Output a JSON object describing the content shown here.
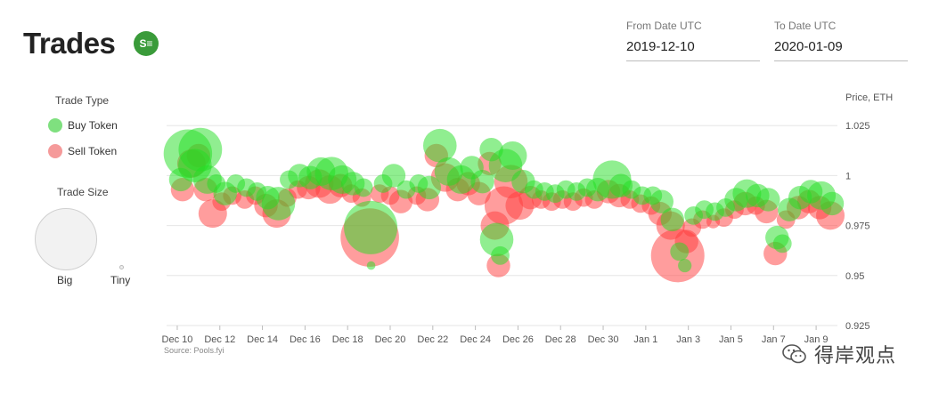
{
  "header": {
    "title": "Trades",
    "logo_text": "S≡"
  },
  "filters": {
    "from_label": "From Date UTC",
    "from_value": "2019-12-10",
    "to_label": "To Date UTC",
    "to_value": "2020-01-09"
  },
  "legend": {
    "type_title": "Trade Type",
    "buy_label": "Buy Token",
    "sell_label": "Sell Token",
    "size_title": "Trade Size",
    "big_label": "Big",
    "tiny_label": "Tiny"
  },
  "colors": {
    "buy": "#22dd22",
    "sell": "#ff3b3b",
    "buy_legend": "#7fe07f",
    "sell_legend": "#f59a9a"
  },
  "source": "Source: Pools.fyi",
  "watermark": "得岸观点",
  "chart_data": {
    "type": "scatter",
    "ylabel": "Price, ETH",
    "ylim": [
      0.925,
      1.03
    ],
    "xlim": [
      "2019-12-09T12:00",
      "2020-01-10T00:00"
    ],
    "y_ticks": [
      1.025,
      1,
      0.975,
      0.95,
      0.925
    ],
    "y_tick_labels": [
      "1.025",
      "1",
      "0.975",
      "0.95",
      "0.925"
    ],
    "x_ticks": [
      "2019-12-10",
      "2019-12-12",
      "2019-12-14",
      "2019-12-16",
      "2019-12-18",
      "2019-12-20",
      "2019-12-22",
      "2019-12-24",
      "2019-12-26",
      "2019-12-28",
      "2019-12-30",
      "2020-01-01",
      "2020-01-03",
      "2020-01-05",
      "2020-01-07",
      "2020-01-09"
    ],
    "x_tick_labels": [
      "Dec 10",
      "Dec 12",
      "Dec 14",
      "Dec 16",
      "Dec 18",
      "Dec 20",
      "Dec 22",
      "Dec 24",
      "Dec 26",
      "Dec 28",
      "Dec 30",
      "Jan 1",
      "Jan 3",
      "Jan 5",
      "Jan 7",
      "Jan 9"
    ],
    "grid": true,
    "legend_position": "left",
    "series": [
      {
        "name": "Buy Token",
        "points": [
          {
            "x": "2019-12-10T04:00",
            "y": 0.998,
            "size": 4
          },
          {
            "x": "2019-12-10T12:00",
            "y": 1.011,
            "size": 9
          },
          {
            "x": "2019-12-10T20:00",
            "y": 1.005,
            "size": 6
          },
          {
            "x": "2019-12-11T02:00",
            "y": 1.013,
            "size": 8
          },
          {
            "x": "2019-12-11T10:00",
            "y": 0.998,
            "size": 5
          },
          {
            "x": "2019-12-11T20:00",
            "y": 0.996,
            "size": 3
          },
          {
            "x": "2019-12-12T06:00",
            "y": 0.991,
            "size": 4
          },
          {
            "x": "2019-12-12T18:00",
            "y": 0.996,
            "size": 3
          },
          {
            "x": "2019-12-13T06:00",
            "y": 0.994,
            "size": 3
          },
          {
            "x": "2019-12-13T18:00",
            "y": 0.992,
            "size": 3
          },
          {
            "x": "2019-12-14T06:00",
            "y": 0.989,
            "size": 4
          },
          {
            "x": "2019-12-14T18:00",
            "y": 0.986,
            "size": 6
          },
          {
            "x": "2019-12-15T06:00",
            "y": 0.998,
            "size": 3
          },
          {
            "x": "2019-12-15T18:00",
            "y": 1.0,
            "size": 4
          },
          {
            "x": "2019-12-16T06:00",
            "y": 0.999,
            "size": 4
          },
          {
            "x": "2019-12-16T18:00",
            "y": 1.002,
            "size": 5
          },
          {
            "x": "2019-12-17T06:00",
            "y": 1.001,
            "size": 6
          },
          {
            "x": "2019-12-17T18:00",
            "y": 0.998,
            "size": 5
          },
          {
            "x": "2019-12-18T06:00",
            "y": 0.996,
            "size": 4
          },
          {
            "x": "2019-12-18T18:00",
            "y": 0.994,
            "size": 3
          },
          {
            "x": "2019-12-19T02:00",
            "y": 0.974,
            "size": 10
          },
          {
            "x": "2019-12-19T02:30",
            "y": 0.955,
            "size": 1
          },
          {
            "x": "2019-12-19T16:00",
            "y": 0.996,
            "size": 3
          },
          {
            "x": "2019-12-20T04:00",
            "y": 1.0,
            "size": 4
          },
          {
            "x": "2019-12-20T18:00",
            "y": 0.993,
            "size": 3
          },
          {
            "x": "2019-12-21T08:00",
            "y": 0.996,
            "size": 3
          },
          {
            "x": "2019-12-21T20:00",
            "y": 0.994,
            "size": 4
          },
          {
            "x": "2019-12-22T08:00",
            "y": 1.015,
            "size": 6
          },
          {
            "x": "2019-12-22T18:00",
            "y": 1.002,
            "size": 5
          },
          {
            "x": "2019-12-23T08:00",
            "y": 0.998,
            "size": 5
          },
          {
            "x": "2019-12-23T20:00",
            "y": 1.004,
            "size": 4
          },
          {
            "x": "2019-12-24T08:00",
            "y": 0.997,
            "size": 4
          },
          {
            "x": "2019-12-24T18:00",
            "y": 1.013,
            "size": 4
          },
          {
            "x": "2019-12-25T00:00",
            "y": 0.968,
            "size": 6
          },
          {
            "x": "2019-12-25T04:00",
            "y": 0.96,
            "size": 3
          },
          {
            "x": "2019-12-25T10:00",
            "y": 1.005,
            "size": 6
          },
          {
            "x": "2019-12-25T18:00",
            "y": 1.01,
            "size": 5
          },
          {
            "x": "2019-12-26T06:00",
            "y": 0.997,
            "size": 4
          },
          {
            "x": "2019-12-26T18:00",
            "y": 0.993,
            "size": 3
          },
          {
            "x": "2019-12-27T06:00",
            "y": 0.992,
            "size": 3
          },
          {
            "x": "2019-12-27T18:00",
            "y": 0.991,
            "size": 3
          },
          {
            "x": "2019-12-28T06:00",
            "y": 0.993,
            "size": 3
          },
          {
            "x": "2019-12-28T18:00",
            "y": 0.992,
            "size": 3
          },
          {
            "x": "2019-12-29T06:00",
            "y": 0.994,
            "size": 3
          },
          {
            "x": "2019-12-29T18:00",
            "y": 0.993,
            "size": 4
          },
          {
            "x": "2019-12-30T10:00",
            "y": 0.998,
            "size": 7
          },
          {
            "x": "2019-12-30T20:00",
            "y": 0.995,
            "size": 4
          },
          {
            "x": "2019-12-31T08:00",
            "y": 0.993,
            "size": 3
          },
          {
            "x": "2019-12-31T20:00",
            "y": 0.99,
            "size": 3
          },
          {
            "x": "2020-01-01T08:00",
            "y": 0.99,
            "size": 3
          },
          {
            "x": "2020-01-01T18:00",
            "y": 0.987,
            "size": 4
          },
          {
            "x": "2020-01-02T06:00",
            "y": 0.978,
            "size": 4
          },
          {
            "x": "2020-01-02T14:00",
            "y": 0.962,
            "size": 3
          },
          {
            "x": "2020-01-02T20:00",
            "y": 0.955,
            "size": 2
          },
          {
            "x": "2020-01-03T06:00",
            "y": 0.98,
            "size": 3
          },
          {
            "x": "2020-01-03T18:00",
            "y": 0.983,
            "size": 3
          },
          {
            "x": "2020-01-04T06:00",
            "y": 0.982,
            "size": 3
          },
          {
            "x": "2020-01-04T18:00",
            "y": 0.984,
            "size": 3
          },
          {
            "x": "2020-01-05T06:00",
            "y": 0.988,
            "size": 4
          },
          {
            "x": "2020-01-05T18:00",
            "y": 0.991,
            "size": 5
          },
          {
            "x": "2020-01-06T06:00",
            "y": 0.99,
            "size": 4
          },
          {
            "x": "2020-01-06T18:00",
            "y": 0.988,
            "size": 4
          },
          {
            "x": "2020-01-07T04:00",
            "y": 0.969,
            "size": 4
          },
          {
            "x": "2020-01-07T10:00",
            "y": 0.966,
            "size": 3
          },
          {
            "x": "2020-01-07T18:00",
            "y": 0.983,
            "size": 4
          },
          {
            "x": "2020-01-08T06:00",
            "y": 0.989,
            "size": 4
          },
          {
            "x": "2020-01-08T18:00",
            "y": 0.992,
            "size": 4
          },
          {
            "x": "2020-01-09T06:00",
            "y": 0.99,
            "size": 5
          },
          {
            "x": "2020-01-09T18:00",
            "y": 0.986,
            "size": 4
          }
        ]
      },
      {
        "name": "Sell Token",
        "points": [
          {
            "x": "2019-12-10T06:00",
            "y": 0.993,
            "size": 4
          },
          {
            "x": "2019-12-10T16:00",
            "y": 1.006,
            "size": 5
          },
          {
            "x": "2019-12-11T00:00",
            "y": 1.01,
            "size": 4
          },
          {
            "x": "2019-12-11T08:00",
            "y": 0.993,
            "size": 4
          },
          {
            "x": "2019-12-11T16:00",
            "y": 0.981,
            "size": 5
          },
          {
            "x": "2019-12-12T02:00",
            "y": 0.987,
            "size": 3
          },
          {
            "x": "2019-12-12T14:00",
            "y": 0.99,
            "size": 3
          },
          {
            "x": "2019-12-13T04:00",
            "y": 0.988,
            "size": 3
          },
          {
            "x": "2019-12-13T16:00",
            "y": 0.99,
            "size": 3
          },
          {
            "x": "2019-12-14T04:00",
            "y": 0.985,
            "size": 4
          },
          {
            "x": "2019-12-14T16:00",
            "y": 0.981,
            "size": 5
          },
          {
            "x": "2019-12-15T04:00",
            "y": 0.989,
            "size": 3
          },
          {
            "x": "2019-12-15T16:00",
            "y": 0.993,
            "size": 3
          },
          {
            "x": "2019-12-16T04:00",
            "y": 0.994,
            "size": 4
          },
          {
            "x": "2019-12-16T16:00",
            "y": 0.996,
            "size": 5
          },
          {
            "x": "2019-12-17T04:00",
            "y": 0.993,
            "size": 5
          },
          {
            "x": "2019-12-17T16:00",
            "y": 0.995,
            "size": 4
          },
          {
            "x": "2019-12-18T04:00",
            "y": 0.991,
            "size": 3
          },
          {
            "x": "2019-12-18T16:00",
            "y": 0.989,
            "size": 3
          },
          {
            "x": "2019-12-19T01:00",
            "y": 0.969,
            "size": 11
          },
          {
            "x": "2019-12-19T12:00",
            "y": 0.991,
            "size": 3
          },
          {
            "x": "2019-12-20T00:00",
            "y": 0.99,
            "size": 3
          },
          {
            "x": "2019-12-20T12:00",
            "y": 0.987,
            "size": 4
          },
          {
            "x": "2019-12-21T06:00",
            "y": 0.99,
            "size": 3
          },
          {
            "x": "2019-12-21T18:00",
            "y": 0.988,
            "size": 4
          },
          {
            "x": "2019-12-22T04:00",
            "y": 1.01,
            "size": 4
          },
          {
            "x": "2019-12-22T14:00",
            "y": 0.999,
            "size": 5
          },
          {
            "x": "2019-12-23T04:00",
            "y": 0.993,
            "size": 4
          },
          {
            "x": "2019-12-23T16:00",
            "y": 0.996,
            "size": 4
          },
          {
            "x": "2019-12-24T04:00",
            "y": 0.991,
            "size": 4
          },
          {
            "x": "2019-12-24T16:00",
            "y": 1.006,
            "size": 4
          },
          {
            "x": "2019-12-24T22:00",
            "y": 0.975,
            "size": 5
          },
          {
            "x": "2019-12-25T02:00",
            "y": 0.955,
            "size": 4
          },
          {
            "x": "2019-12-25T08:00",
            "y": 0.985,
            "size": 7
          },
          {
            "x": "2019-12-25T16:00",
            "y": 0.997,
            "size": 6
          },
          {
            "x": "2019-12-26T02:00",
            "y": 0.985,
            "size": 5
          },
          {
            "x": "2019-12-26T14:00",
            "y": 0.989,
            "size": 4
          },
          {
            "x": "2019-12-27T02:00",
            "y": 0.988,
            "size": 3
          },
          {
            "x": "2019-12-27T14:00",
            "y": 0.987,
            "size": 3
          },
          {
            "x": "2019-12-28T02:00",
            "y": 0.988,
            "size": 3
          },
          {
            "x": "2019-12-28T14:00",
            "y": 0.987,
            "size": 3
          },
          {
            "x": "2019-12-29T02:00",
            "y": 0.989,
            "size": 3
          },
          {
            "x": "2019-12-29T14:00",
            "y": 0.988,
            "size": 3
          },
          {
            "x": "2019-12-30T06:00",
            "y": 0.992,
            "size": 4
          },
          {
            "x": "2019-12-30T18:00",
            "y": 0.99,
            "size": 4
          },
          {
            "x": "2019-12-31T06:00",
            "y": 0.988,
            "size": 3
          },
          {
            "x": "2019-12-31T18:00",
            "y": 0.986,
            "size": 3
          },
          {
            "x": "2020-01-01T06:00",
            "y": 0.985,
            "size": 3
          },
          {
            "x": "2020-01-01T16:00",
            "y": 0.981,
            "size": 4
          },
          {
            "x": "2020-01-02T04:00",
            "y": 0.975,
            "size": 5
          },
          {
            "x": "2020-01-02T12:00",
            "y": 0.96,
            "size": 10
          },
          {
            "x": "2020-01-02T22:00",
            "y": 0.967,
            "size": 4
          },
          {
            "x": "2020-01-03T04:00",
            "y": 0.974,
            "size": 3
          },
          {
            "x": "2020-01-03T16:00",
            "y": 0.978,
            "size": 3
          },
          {
            "x": "2020-01-04T04:00",
            "y": 0.977,
            "size": 2
          },
          {
            "x": "2020-01-04T16:00",
            "y": 0.979,
            "size": 3
          },
          {
            "x": "2020-01-05T04:00",
            "y": 0.983,
            "size": 3
          },
          {
            "x": "2020-01-05T16:00",
            "y": 0.986,
            "size": 4
          },
          {
            "x": "2020-01-06T04:00",
            "y": 0.985,
            "size": 3
          },
          {
            "x": "2020-01-06T16:00",
            "y": 0.982,
            "size": 4
          },
          {
            "x": "2020-01-07T02:00",
            "y": 0.961,
            "size": 4
          },
          {
            "x": "2020-01-07T14:00",
            "y": 0.978,
            "size": 3
          },
          {
            "x": "2020-01-08T04:00",
            "y": 0.984,
            "size": 4
          },
          {
            "x": "2020-01-08T16:00",
            "y": 0.987,
            "size": 4
          },
          {
            "x": "2020-01-09T04:00",
            "y": 0.984,
            "size": 4
          },
          {
            "x": "2020-01-09T16:00",
            "y": 0.98,
            "size": 5
          }
        ]
      }
    ]
  }
}
